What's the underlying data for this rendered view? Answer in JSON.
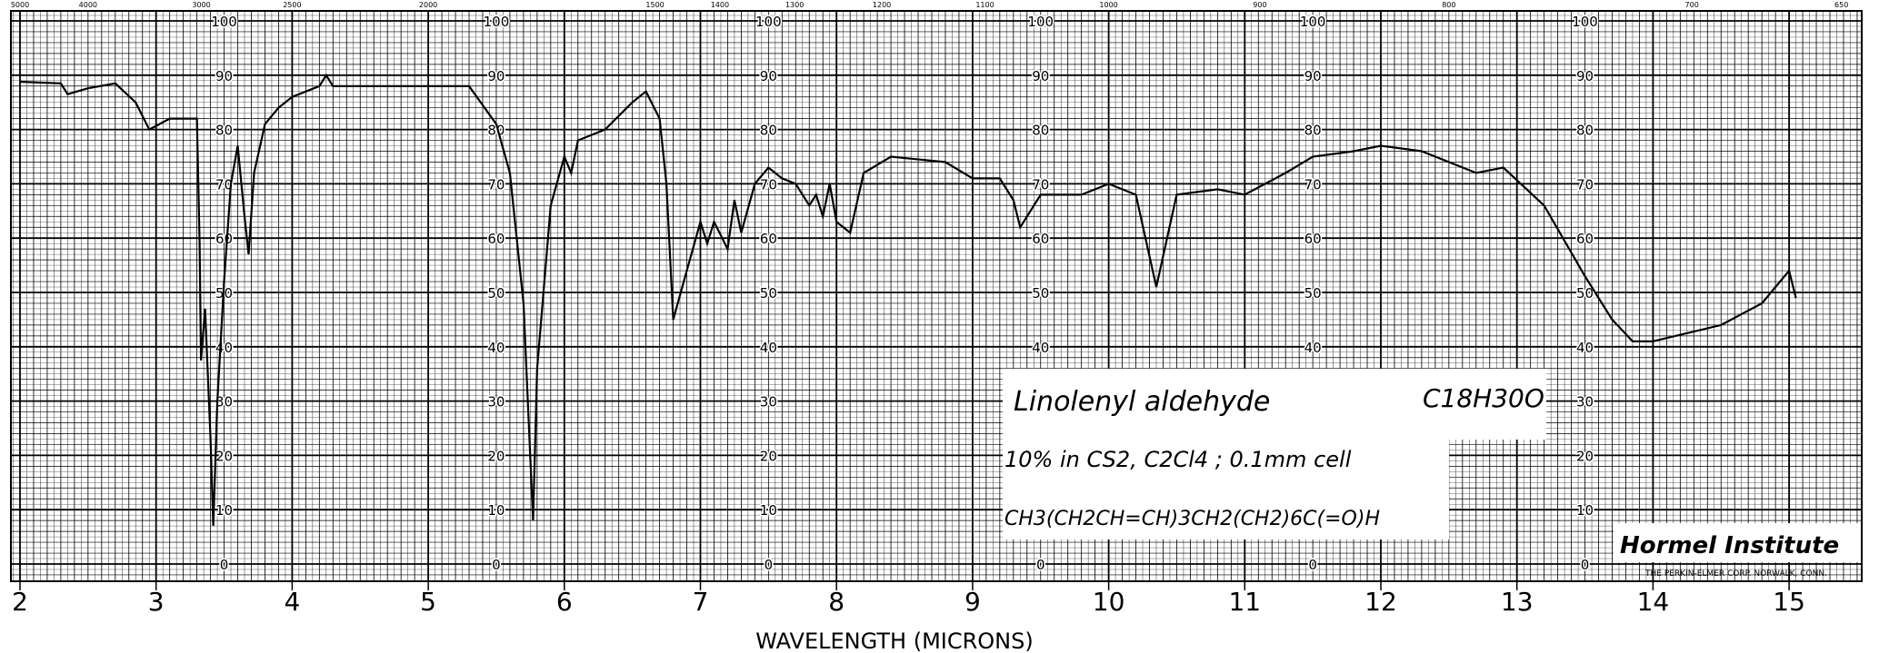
{
  "chart_data": {
    "type": "line",
    "title": "Linolenyl aldehyde",
    "xlabel": "WAVELENGTH (MICRONS)",
    "ylabel": "",
    "xlim": [
      2,
      15.5
    ],
    "ylim": [
      0,
      100
    ],
    "grid": true,
    "x_ticks": [
      "2",
      "3",
      "4",
      "5",
      "6",
      "7",
      "8",
      "9",
      "10",
      "11",
      "12",
      "13",
      "14",
      "15"
    ],
    "y_ticks": [
      "100",
      "90",
      "80",
      "70",
      "60",
      "50",
      "40",
      "30",
      "20",
      "10",
      "0"
    ],
    "top_wavenumber_ticks": [
      "5000",
      "4000",
      "3000",
      "2500",
      "2000",
      "1500",
      "1400",
      "1300",
      "1200",
      "1100",
      "1000",
      "900",
      "800",
      "700",
      "650"
    ],
    "series": [
      {
        "name": "Linolenyl aldehyde spectrum",
        "x": [
          2.0,
          2.3,
          2.35,
          2.5,
          2.7,
          2.85,
          2.95,
          3.1,
          3.3,
          3.32,
          3.33,
          3.36,
          3.4,
          3.42,
          3.45,
          3.5,
          3.55,
          3.6,
          3.65,
          3.68,
          3.72,
          3.8,
          3.9,
          4.0,
          4.2,
          4.25,
          4.3,
          5.0,
          5.3,
          5.5,
          5.6,
          5.7,
          5.77,
          5.8,
          5.9,
          6.0,
          6.05,
          6.1,
          6.3,
          6.5,
          6.6,
          6.7,
          6.75,
          6.8,
          6.9,
          7.0,
          7.05,
          7.1,
          7.2,
          7.25,
          7.3,
          7.4,
          7.5,
          7.6,
          7.7,
          7.8,
          7.85,
          7.9,
          7.95,
          8.0,
          8.1,
          8.2,
          8.4,
          8.8,
          9.0,
          9.2,
          9.3,
          9.35,
          9.5,
          9.8,
          10.0,
          10.2,
          10.35,
          10.5,
          10.8,
          11.0,
          11.3,
          11.5,
          11.8,
          12.0,
          12.3,
          12.7,
          12.9,
          13.2,
          13.5,
          13.7,
          13.85,
          14.0,
          14.5,
          14.8,
          15.0,
          15.05
        ],
        "y": [
          88.8,
          88.5,
          86.5,
          87.6,
          88.5,
          85,
          80,
          82,
          82,
          59,
          37.5,
          47,
          23,
          7,
          30,
          52,
          70,
          77,
          64,
          57,
          72,
          81,
          84,
          86,
          88,
          90,
          88,
          88,
          88,
          81,
          72,
          48,
          8,
          36,
          66,
          75,
          72,
          78,
          80,
          85,
          87,
          82,
          70,
          45,
          54,
          63,
          59,
          63,
          58,
          67,
          61,
          70,
          73,
          71,
          70,
          66,
          68,
          64,
          70,
          63,
          61,
          72,
          75,
          74,
          71,
          71,
          67,
          62,
          68,
          68,
          70,
          68,
          51,
          68,
          69,
          68,
          72,
          75,
          76,
          77,
          76,
          72,
          73,
          66,
          53,
          45,
          41,
          41,
          44,
          48,
          54,
          49
        ]
      }
    ],
    "annotations": {
      "compound": "Linolenyl aldehyde",
      "formula": "C18H30O",
      "conditions": "10% in CS2, C2Cl4 ; 0.1mm cell",
      "structure": "CH3(CH2CH=CH)3CH2(CH2)6C(=O)H",
      "lab": "Hormel Institute",
      "paper_maker": "THE PERKIN-ELMER CORP. NORWALK, CONN."
    }
  }
}
